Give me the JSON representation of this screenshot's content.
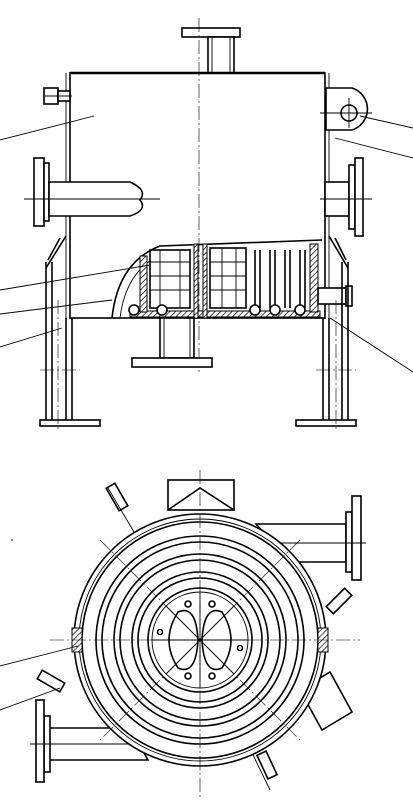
{
  "drawing": {
    "views": [
      "front-elevation",
      "plan-view"
    ],
    "line_color": "#000000",
    "background": "#ffffff"
  }
}
